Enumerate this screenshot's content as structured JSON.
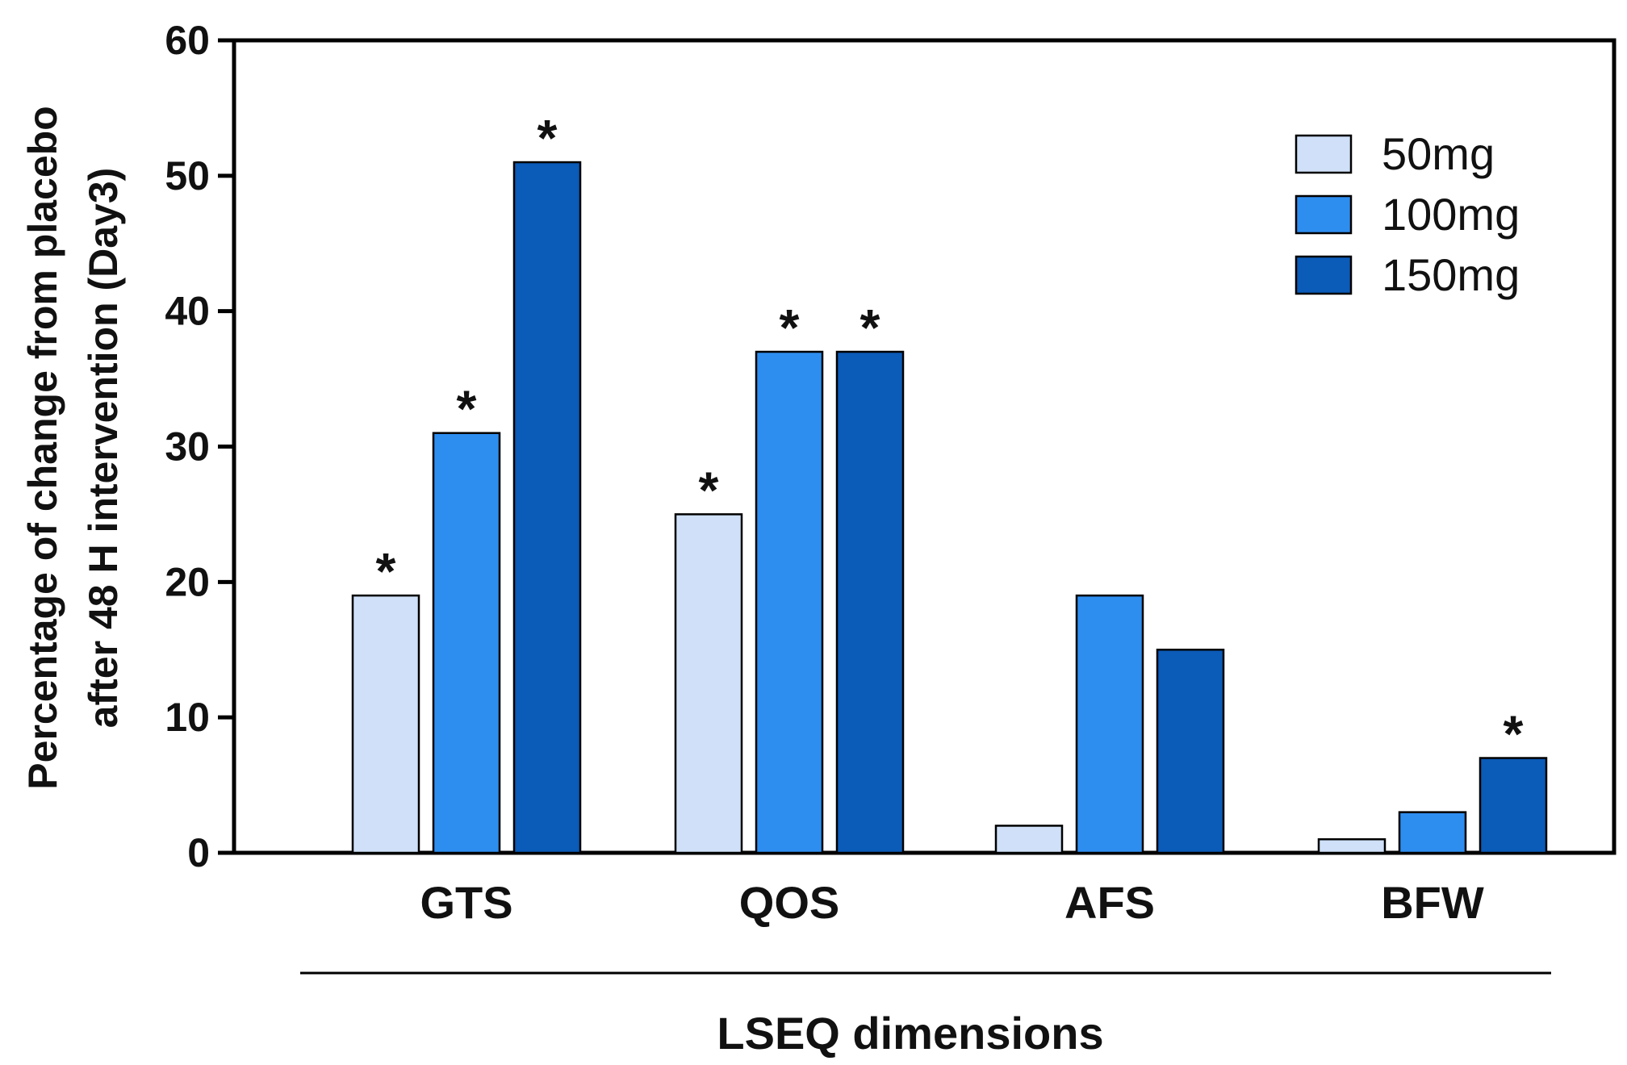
{
  "chart_data": {
    "type": "bar",
    "title": "",
    "xlabel": "LSEQ dimensions",
    "ylabel_line1": "Percentage of change from placebo",
    "ylabel_line2": "after 48 H intervention (Day3)",
    "categories": [
      "GTS",
      "QOS",
      "AFS",
      "BFW"
    ],
    "ylim": [
      0,
      60
    ],
    "yticks": [
      0,
      10,
      20,
      30,
      40,
      50,
      60
    ],
    "series": [
      {
        "name": "50mg",
        "color": "#cfe0f8",
        "values": [
          19,
          25,
          2,
          1
        ],
        "significant": [
          true,
          true,
          false,
          false
        ]
      },
      {
        "name": "100mg",
        "color": "#2e8ef0",
        "values": [
          31,
          37,
          19,
          3
        ],
        "significant": [
          true,
          true,
          false,
          false
        ]
      },
      {
        "name": "150mg",
        "color": "#0b5bb8",
        "values": [
          51,
          37,
          15,
          7
        ],
        "significant": [
          true,
          true,
          false,
          true
        ]
      }
    ],
    "significance_marker": "*",
    "legend_position": "top-right"
  }
}
